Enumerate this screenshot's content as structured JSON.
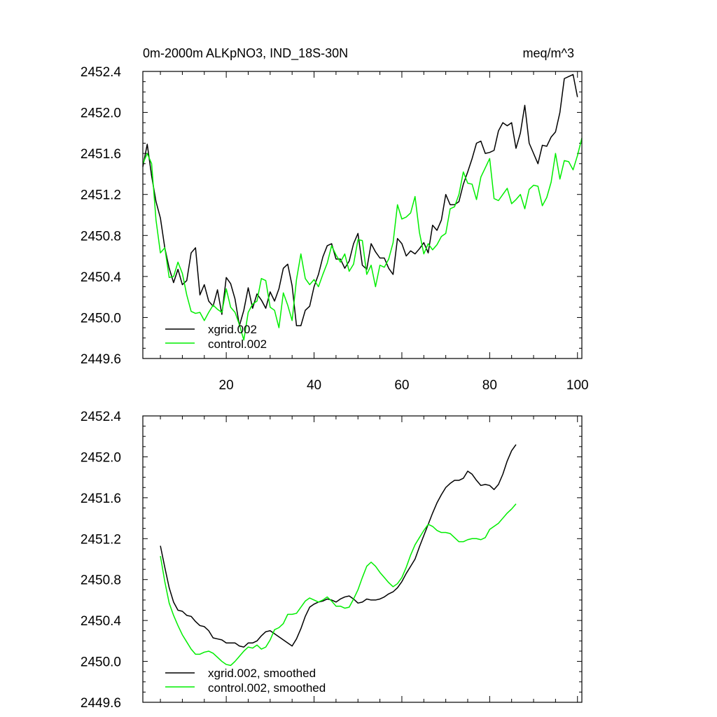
{
  "chart_data": [
    {
      "type": "line",
      "title": "0m-2000m ALKpNO3, IND_18S-30N",
      "units": "meq/m^3",
      "xlim": [
        1,
        101
      ],
      "ylim": [
        2449.6,
        2452.4
      ],
      "x_ticks": [
        20,
        40,
        60,
        80,
        100
      ],
      "x_tick_labels": [
        "20",
        "40",
        "60",
        "80",
        "100"
      ],
      "y_ticks": [
        2449.6,
        2450.0,
        2450.4,
        2450.8,
        2451.2,
        2451.6,
        2452.0,
        2452.4
      ],
      "y_tick_labels": [
        "2449.6",
        "2450.0",
        "2450.4",
        "2450.8",
        "2451.2",
        "2451.6",
        "2452.0",
        "2452.4"
      ],
      "legend_position": "bottom-left",
      "x_start": 1,
      "series": [
        {
          "name": "xgrid.002",
          "color": "#000000",
          "values": [
            2451.47,
            2451.69,
            2451.38,
            2451.13,
            2450.97,
            2450.68,
            2450.48,
            2450.34,
            2450.47,
            2450.32,
            2450.36,
            2450.63,
            2450.68,
            2450.22,
            2450.32,
            2450.16,
            2450.11,
            2450.27,
            2450.03,
            2450.39,
            2450.33,
            2450.18,
            2449.92,
            2450.07,
            2450.29,
            2450.09,
            2450.23,
            2450.17,
            2450.09,
            2450.25,
            2450.16,
            2450.28,
            2450.48,
            2450.52,
            2450.31,
            2449.92,
            2449.92,
            2450.07,
            2450.11,
            2450.3,
            2450.42,
            2450.59,
            2450.7,
            2450.72,
            2450.57,
            2450.57,
            2450.48,
            2450.55,
            2450.72,
            2450.82,
            2450.51,
            2450.47,
            2450.72,
            2450.64,
            2450.58,
            2450.58,
            2450.48,
            2450.42,
            2450.77,
            2450.72,
            2450.6,
            2450.65,
            2450.62,
            2450.67,
            2450.73,
            2450.63,
            2450.9,
            2450.85,
            2450.95,
            2451.2,
            2451.1,
            2451.1,
            2451.13,
            2451.3,
            2451.42,
            2451.55,
            2451.7,
            2451.72,
            2451.6,
            2451.61,
            2451.63,
            2451.82,
            2451.9,
            2451.87,
            2451.9,
            2451.65,
            2451.8,
            2452.07,
            2451.7,
            2451.6,
            2451.5,
            2451.68,
            2451.67,
            2451.76,
            2451.81,
            2452.0,
            2452.33,
            2452.35,
            2452.37,
            2452.15
          ]
        },
        {
          "name": "control.002",
          "color": "#00ee00",
          "values": [
            2451.5,
            2451.6,
            2451.5,
            2450.95,
            2450.63,
            2450.68,
            2450.39,
            2450.4,
            2450.54,
            2450.43,
            2450.22,
            2450.06,
            2450.04,
            2450.05,
            2449.97,
            2450.05,
            2450.12,
            2450.08,
            2450.05,
            2450.28,
            2450.1,
            2450.05,
            2449.93,
            2449.78,
            2450.05,
            2450.13,
            2450.16,
            2450.38,
            2450.36,
            2450.1,
            2450.07,
            2449.9,
            2450.24,
            2450.12,
            2449.97,
            2450.37,
            2450.62,
            2450.38,
            2450.32,
            2450.37,
            2450.3,
            2450.42,
            2450.53,
            2450.7,
            2450.61,
            2450.54,
            2450.62,
            2450.45,
            2450.52,
            2450.76,
            2450.75,
            2450.42,
            2450.51,
            2450.3,
            2450.51,
            2450.49,
            2450.57,
            2450.73,
            2451.1,
            2450.96,
            2450.98,
            2451.02,
            2451.18,
            2450.83,
            2450.62,
            2450.72,
            2450.66,
            2450.71,
            2450.79,
            2450.82,
            2451.06,
            2451.08,
            2451.2,
            2451.42,
            2451.31,
            2451.3,
            2451.15,
            2451.37,
            2451.46,
            2451.55,
            2451.16,
            2451.14,
            2451.2,
            2451.26,
            2451.11,
            2451.15,
            2451.2,
            2451.06,
            2451.25,
            2451.29,
            2451.28,
            2451.09,
            2451.17,
            2451.32,
            2451.6,
            2451.35,
            2451.53,
            2451.52,
            2451.44,
            2451.58,
            2451.75
          ]
        }
      ]
    },
    {
      "type": "line",
      "title": "",
      "xlim": [
        1,
        101
      ],
      "ylim": [
        2449.6,
        2452.4
      ],
      "x_ticks": [
        20,
        40,
        60,
        80,
        100
      ],
      "x_tick_labels": [],
      "y_ticks": [
        2449.6,
        2450.0,
        2450.4,
        2450.8,
        2451.2,
        2451.6,
        2452.0,
        2452.4
      ],
      "y_tick_labels": [
        "2449.6",
        "2450.0",
        "2450.4",
        "2450.8",
        "2451.2",
        "2451.6",
        "2452.0",
        "2452.4"
      ],
      "legend_position": "bottom-left",
      "x_start": 5,
      "series": [
        {
          "name": "xgrid.002, smoothed",
          "color": "#000000",
          "values": [
            2451.13,
            2450.92,
            2450.72,
            2450.58,
            2450.5,
            2450.49,
            2450.45,
            2450.44,
            2450.39,
            2450.35,
            2450.34,
            2450.3,
            2450.23,
            2450.22,
            2450.21,
            2450.18,
            2450.18,
            2450.18,
            2450.15,
            2450.14,
            2450.18,
            2450.18,
            2450.2,
            2450.25,
            2450.29,
            2450.3,
            2450.27,
            2450.24,
            2450.21,
            2450.18,
            2450.15,
            2450.22,
            2450.32,
            2450.44,
            2450.53,
            2450.56,
            2450.58,
            2450.59,
            2450.61,
            2450.6,
            2450.58,
            2450.61,
            2450.63,
            2450.64,
            2450.61,
            2450.57,
            2450.58,
            2450.61,
            2450.6,
            2450.6,
            2450.61,
            2450.63,
            2450.66,
            2450.68,
            2450.72,
            2450.78,
            2450.86,
            2450.93,
            2451.0,
            2451.12,
            2451.23,
            2451.34,
            2451.45,
            2451.55,
            2451.63,
            2451.7,
            2451.74,
            2451.77,
            2451.77,
            2451.79,
            2451.86,
            2451.83,
            2451.77,
            2451.72,
            2451.73,
            2451.72,
            2451.68,
            2451.73,
            2451.83,
            2451.96,
            2452.06,
            2452.12
          ]
        },
        {
          "name": "control.002, smoothed",
          "color": "#00ee00",
          "values": [
            2451.03,
            2450.78,
            2450.57,
            2450.45,
            2450.35,
            2450.26,
            2450.19,
            2450.12,
            2450.07,
            2450.07,
            2450.09,
            2450.1,
            2450.08,
            2450.04,
            2450.0,
            2449.97,
            2449.96,
            2450.0,
            2450.05,
            2450.1,
            2450.14,
            2450.13,
            2450.16,
            2450.12,
            2450.14,
            2450.21,
            2450.31,
            2450.33,
            2450.37,
            2450.46,
            2450.46,
            2450.47,
            2450.53,
            2450.59,
            2450.62,
            2450.6,
            2450.58,
            2450.6,
            2450.63,
            2450.59,
            2450.54,
            2450.54,
            2450.52,
            2450.53,
            2450.61,
            2450.7,
            2450.82,
            2450.93,
            2450.97,
            2450.93,
            2450.87,
            2450.82,
            2450.77,
            2450.73,
            2450.76,
            2450.82,
            2450.92,
            2451.04,
            2451.14,
            2451.21,
            2451.28,
            2451.34,
            2451.32,
            2451.28,
            2451.26,
            2451.26,
            2451.25,
            2451.21,
            2451.17,
            2451.17,
            2451.19,
            2451.2,
            2451.2,
            2451.19,
            2451.21,
            2451.29,
            2451.32,
            2451.35,
            2451.4,
            2451.45,
            2451.49,
            2451.54
          ]
        }
      ]
    }
  ]
}
